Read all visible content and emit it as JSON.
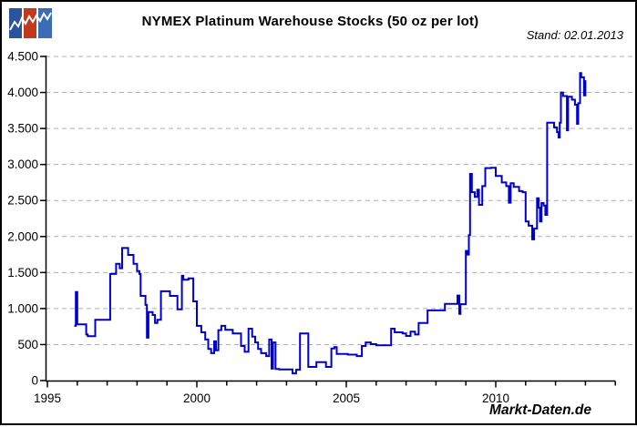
{
  "header": {
    "title": "NYMEX Platinum Warehouse Stocks (50 oz per lot)",
    "stand_label": "Stand: 02.01.2013",
    "logo": {
      "bar_colors": [
        "#2a549b",
        "#c23a1e",
        "#3a6db5"
      ],
      "zigzag_color": "#ffffff"
    }
  },
  "watermark": "Markt-Daten.de",
  "chart_data": {
    "type": "line",
    "style": "step-after",
    "title": "NYMEX Platinum Warehouse Stocks (50 oz per lot)",
    "as_of": "Stand: 02.01.2013",
    "source_watermark": "Markt-Daten.de",
    "line_color": "#0000cc",
    "grid": "horizontal dashed gray",
    "legend_position": "none",
    "x_axis": {
      "min": 1995,
      "max": 2014.5,
      "tick_years": [
        1995,
        1996,
        1997,
        1998,
        1999,
        2000,
        2001,
        2002,
        2003,
        2004,
        2005,
        2006,
        2007,
        2008,
        2009,
        2010,
        2011,
        2012,
        2013,
        2014
      ],
      "major_ticks": [
        1995,
        2000,
        2005,
        2010
      ],
      "labels": [
        "1995",
        "2000",
        "2005",
        "2010"
      ]
    },
    "y_axis": {
      "min": 0,
      "max": 4500,
      "tick_interval": 500,
      "tick_labels": [
        "0",
        "500",
        "1.000",
        "1.500",
        "2.000",
        "2.500",
        "3.000",
        "3.500",
        "4.000",
        "4.500"
      ]
    },
    "points": [
      [
        1995.9,
        760
      ],
      [
        1995.95,
        1230
      ],
      [
        1996.0,
        780
      ],
      [
        1996.3,
        640
      ],
      [
        1996.35,
        615
      ],
      [
        1996.6,
        845
      ],
      [
        1997.1,
        1480
      ],
      [
        1997.3,
        1620
      ],
      [
        1997.42,
        1560
      ],
      [
        1997.5,
        1840
      ],
      [
        1997.7,
        1745
      ],
      [
        1997.88,
        1620
      ],
      [
        1998.0,
        1520
      ],
      [
        1998.08,
        1480
      ],
      [
        1998.12,
        1175
      ],
      [
        1998.28,
        1050
      ],
      [
        1998.33,
        595
      ],
      [
        1998.38,
        950
      ],
      [
        1998.52,
        910
      ],
      [
        1998.6,
        800
      ],
      [
        1998.68,
        845
      ],
      [
        1998.8,
        1240
      ],
      [
        1999.1,
        1175
      ],
      [
        1999.35,
        990
      ],
      [
        1999.5,
        1455
      ],
      [
        1999.55,
        1400
      ],
      [
        1999.72,
        1420
      ],
      [
        1999.88,
        1100
      ],
      [
        2000.0,
        760
      ],
      [
        2000.15,
        670
      ],
      [
        2000.28,
        570
      ],
      [
        2000.38,
        440
      ],
      [
        2000.48,
        380
      ],
      [
        2000.58,
        545
      ],
      [
        2000.64,
        420
      ],
      [
        2000.72,
        700
      ],
      [
        2000.82,
        760
      ],
      [
        2000.95,
        705
      ],
      [
        2001.2,
        655
      ],
      [
        2001.48,
        480
      ],
      [
        2001.6,
        400
      ],
      [
        2001.73,
        720
      ],
      [
        2001.85,
        610
      ],
      [
        2001.95,
        530
      ],
      [
        2002.05,
        440
      ],
      [
        2002.15,
        380
      ],
      [
        2002.32,
        340
      ],
      [
        2002.42,
        570
      ],
      [
        2002.5,
        165
      ],
      [
        2002.55,
        530
      ],
      [
        2002.63,
        160
      ],
      [
        2002.75,
        155
      ],
      [
        2003.2,
        100
      ],
      [
        2003.32,
        150
      ],
      [
        2003.45,
        655
      ],
      [
        2003.73,
        190
      ],
      [
        2004.0,
        255
      ],
      [
        2004.32,
        190
      ],
      [
        2004.5,
        445
      ],
      [
        2004.6,
        465
      ],
      [
        2004.68,
        370
      ],
      [
        2005.05,
        360
      ],
      [
        2005.35,
        340
      ],
      [
        2005.52,
        480
      ],
      [
        2005.65,
        530
      ],
      [
        2005.82,
        505
      ],
      [
        2006.0,
        490
      ],
      [
        2006.5,
        720
      ],
      [
        2006.62,
        670
      ],
      [
        2006.88,
        655
      ],
      [
        2007.0,
        620
      ],
      [
        2007.15,
        680
      ],
      [
        2007.3,
        640
      ],
      [
        2007.42,
        800
      ],
      [
        2007.72,
        975
      ],
      [
        2008.3,
        1065
      ],
      [
        2008.72,
        1180
      ],
      [
        2008.78,
        925
      ],
      [
        2008.82,
        1060
      ],
      [
        2009.0,
        1800
      ],
      [
        2009.05,
        1750
      ],
      [
        2009.1,
        2020
      ],
      [
        2009.14,
        2870
      ],
      [
        2009.2,
        2615
      ],
      [
        2009.3,
        2550
      ],
      [
        2009.38,
        2650
      ],
      [
        2009.44,
        2440
      ],
      [
        2009.55,
        2700
      ],
      [
        2009.65,
        2950
      ],
      [
        2009.85,
        2955
      ],
      [
        2010.0,
        2840
      ],
      [
        2010.2,
        2750
      ],
      [
        2010.35,
        2700
      ],
      [
        2010.44,
        2470
      ],
      [
        2010.5,
        2740
      ],
      [
        2010.6,
        2690
      ],
      [
        2010.78,
        2630
      ],
      [
        2010.9,
        2615
      ],
      [
        2011.0,
        2210
      ],
      [
        2011.1,
        2150
      ],
      [
        2011.22,
        1960
      ],
      [
        2011.28,
        2110
      ],
      [
        2011.38,
        2530
      ],
      [
        2011.44,
        2400
      ],
      [
        2011.48,
        2210
      ],
      [
        2011.53,
        2465
      ],
      [
        2011.6,
        2430
      ],
      [
        2011.66,
        2300
      ],
      [
        2011.72,
        3580
      ],
      [
        2011.95,
        3515
      ],
      [
        2012.05,
        3450
      ],
      [
        2012.1,
        3375
      ],
      [
        2012.14,
        3580
      ],
      [
        2012.18,
        4000
      ],
      [
        2012.25,
        3950
      ],
      [
        2012.38,
        3475
      ],
      [
        2012.42,
        3940
      ],
      [
        2012.55,
        3900
      ],
      [
        2012.65,
        3830
      ],
      [
        2012.72,
        3565
      ],
      [
        2012.76,
        3850
      ],
      [
        2012.82,
        4270
      ],
      [
        2012.86,
        4210
      ],
      [
        2012.95,
        3960
      ],
      [
        2013.0,
        4170
      ]
    ]
  }
}
